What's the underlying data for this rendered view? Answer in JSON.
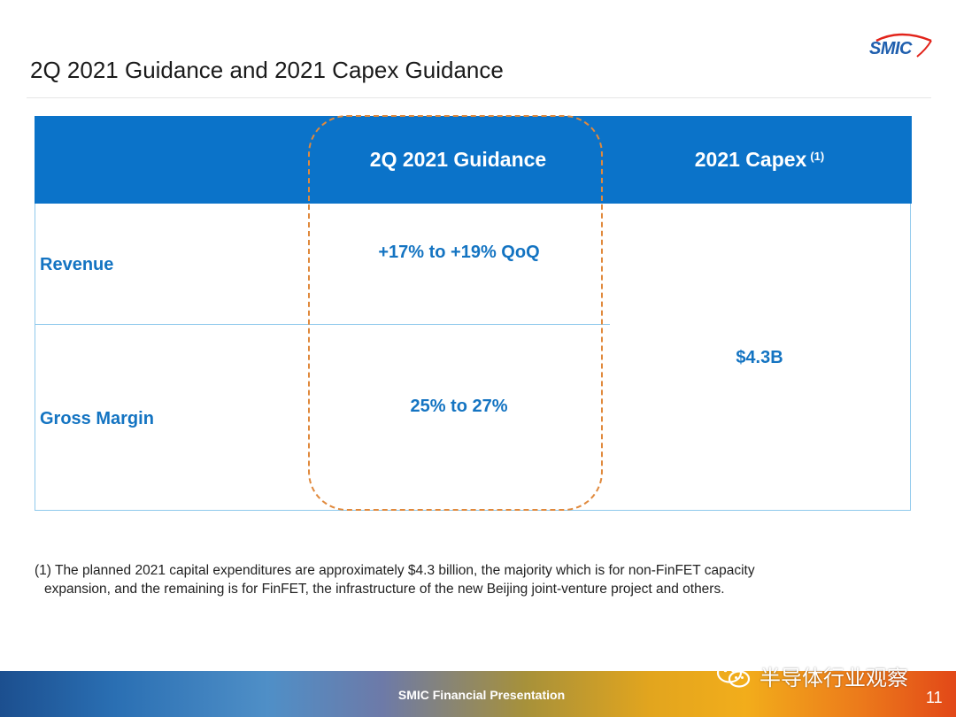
{
  "slide": {
    "title": "2Q 2021 Guidance and 2021 Capex Guidance",
    "logo_text": "SMIC",
    "page_number": "11",
    "footer_text": "SMIC Financial Presentation",
    "watermark_text": "半导体行业观察"
  },
  "colors": {
    "header_blue": "#0b73c9",
    "value_blue": "#1474c2",
    "highlight_orange": "#e0893c"
  },
  "table": {
    "headers": {
      "guidance": "2Q 2021 Guidance",
      "capex": "2021 Capex",
      "capex_note": "(1)"
    },
    "rows": [
      {
        "label": "Revenue",
        "guidance": "+17% to +19% QoQ"
      },
      {
        "label": "Gross Margin",
        "guidance": "25% to 27%"
      }
    ],
    "capex_value": "$4.3B"
  },
  "footnote": {
    "line1": "(1) The planned 2021 capital expenditures are approximately $4.3 billion, the majority which is for non-FinFET capacity",
    "line2": "expansion, and the remaining is for FinFET, the infrastructure of the new Beijing joint-venture project and others."
  },
  "icons": [
    "wechat-icon",
    "smic-logo"
  ]
}
